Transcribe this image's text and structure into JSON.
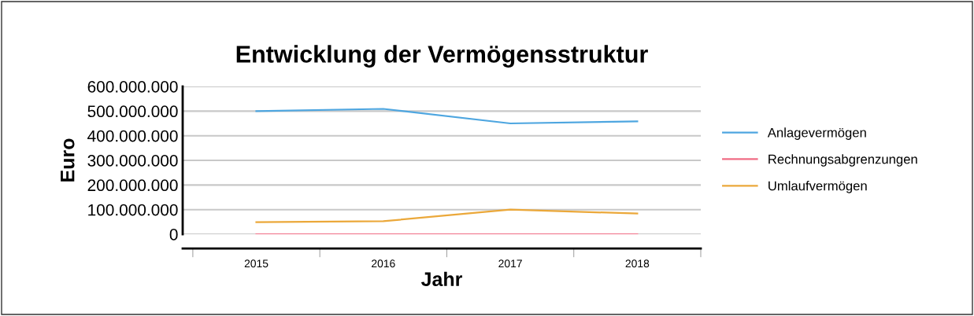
{
  "chart_data": {
    "type": "line",
    "title": "Entwicklung der Vermögensstruktur",
    "xlabel": "Jahr",
    "ylabel": "Euro",
    "categories": [
      "2015",
      "2016",
      "2017",
      "2018"
    ],
    "series": [
      {
        "name": "Anlagevermögen",
        "color": "#4ea6e0",
        "values": [
          500000000,
          509000000,
          450000000,
          458000000
        ]
      },
      {
        "name": "Rechnungsabgrenzungen",
        "color": "#f06c84",
        "values": [
          0,
          0,
          0,
          0
        ]
      },
      {
        "name": "Umlaufvermögen",
        "color": "#eba83a",
        "values": [
          49000000,
          53000000,
          100000000,
          84000000
        ]
      }
    ],
    "ylim": [
      0,
      600000000
    ],
    "yticks": [
      {
        "value": 0,
        "label": "0"
      },
      {
        "value": 100000000,
        "label": "100.000.000"
      },
      {
        "value": 200000000,
        "label": "200.000.000"
      },
      {
        "value": 300000000,
        "label": "300.000.000"
      },
      {
        "value": 400000000,
        "label": "400.000.000"
      },
      {
        "value": 500000000,
        "label": "500.000.000"
      },
      {
        "value": 600000000,
        "label": "600.000.000"
      }
    ],
    "grid": "y",
    "legend": "right",
    "marker": "none",
    "line_style": "solid"
  }
}
